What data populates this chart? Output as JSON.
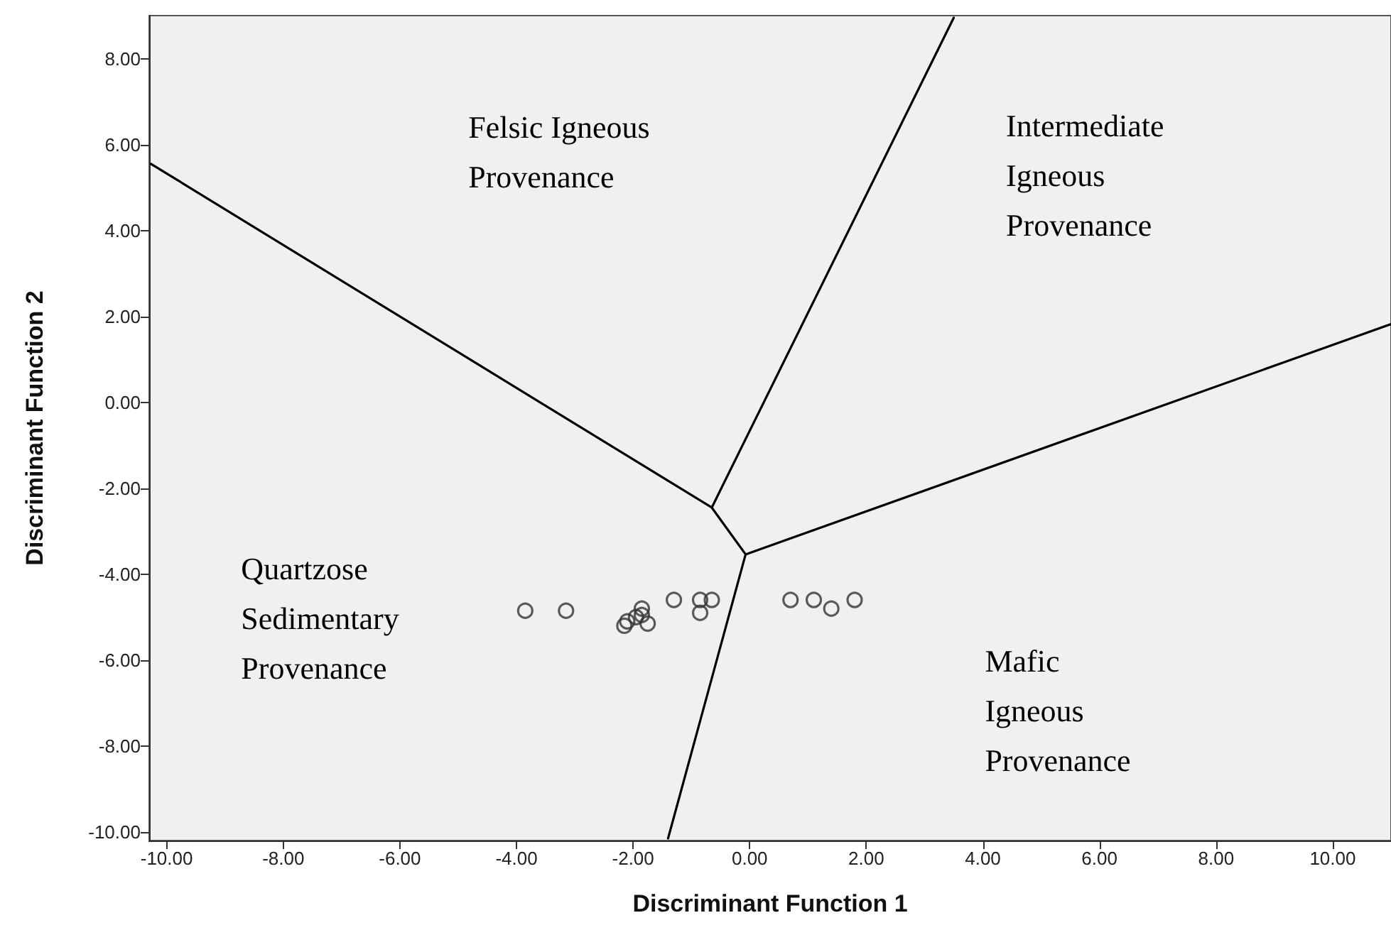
{
  "chart_data": {
    "type": "scatter",
    "xlabel": "Discriminant Function 1",
    "ylabel": "Discriminant Function 2",
    "xlim": [
      -10.3,
      11
    ],
    "ylim": [
      -10.2,
      9
    ],
    "xticks": [
      {
        "value": -10,
        "label": "-10.00"
      },
      {
        "value": -8,
        "label": "-8.00"
      },
      {
        "value": -6,
        "label": "-6.00"
      },
      {
        "value": -4,
        "label": "-4.00"
      },
      {
        "value": -2,
        "label": "-2.00"
      },
      {
        "value": 0,
        "label": "0.00"
      },
      {
        "value": 2,
        "label": "2.00"
      },
      {
        "value": 4,
        "label": "4.00"
      },
      {
        "value": 6,
        "label": "6.00"
      },
      {
        "value": 8,
        "label": "8.00"
      },
      {
        "value": 10,
        "label": "10.00"
      }
    ],
    "yticks": [
      {
        "value": -10,
        "label": "-10.00"
      },
      {
        "value": -8,
        "label": "-8.00"
      },
      {
        "value": -6,
        "label": "-6.00"
      },
      {
        "value": -4,
        "label": "-4.00"
      },
      {
        "value": -2,
        "label": "-2.00"
      },
      {
        "value": 0,
        "label": "0.00"
      },
      {
        "value": 2,
        "label": "2.00"
      },
      {
        "value": 4,
        "label": "4.00"
      },
      {
        "value": 6,
        "label": "6.00"
      },
      {
        "value": 8,
        "label": "8.00"
      }
    ],
    "marker": "circle",
    "series": [
      {
        "color": "#333333",
        "x": [
          -3.85,
          -3.15,
          -2.15,
          -2.1,
          -1.95,
          -1.85,
          -1.85,
          -1.75,
          -1.3,
          -0.85,
          -0.65,
          -0.85,
          0.7,
          1.1,
          1.4,
          1.8
        ],
        "values": [
          -4.85,
          -4.85,
          -5.2,
          -5.1,
          -5.0,
          -4.8,
          -4.95,
          -5.15,
          -4.6,
          -4.6,
          -4.6,
          -4.9,
          -4.6,
          -4.6,
          -4.8,
          -4.6
        ]
      },
      {
        "type": "line",
        "color": "#000000",
        "marker": "none",
        "x": [
          -10.27,
          -0.65,
          -0.07,
          -1.4
        ],
        "values": [
          5.55,
          -2.45,
          -3.54,
          -10.15
        ]
      },
      {
        "type": "line",
        "color": "#000000",
        "marker": "none",
        "x": [
          -0.65,
          3.5
        ],
        "values": [
          -2.45,
          8.95
        ]
      },
      {
        "type": "line",
        "color": "#000000",
        "marker": "none",
        "x": [
          -0.07,
          11
        ],
        "values": [
          -3.54,
          1.82
        ]
      }
    ],
    "annotations": [
      "Felsic Igneous Provenance",
      "Intermediate Igneous Provenance",
      "Quartzose Sedimentary Provenance",
      "Mafic Igneous Provenance"
    ]
  }
}
